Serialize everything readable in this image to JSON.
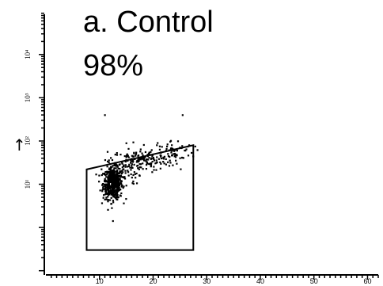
{
  "chart_data": {
    "type": "scatter",
    "title_lines": [
      "a. Control",
      "98%"
    ],
    "xlabel": "",
    "ylabel": "",
    "x_axis_marker": "",
    "y_axis_marker": "↑",
    "xlim": [
      0,
      62
    ],
    "x_tick_labels": [
      "10",
      "20",
      "30",
      "40",
      "50",
      "60"
    ],
    "x_tick_values": [
      10,
      20,
      30,
      40,
      50,
      60
    ],
    "ylim": [
      0.08,
      130000
    ],
    "y_scale": "log",
    "y_tick_labels": [
      "10¹",
      "10²",
      "10³",
      "10⁴"
    ],
    "y_tick_values": [
      10,
      100,
      1000,
      10000
    ],
    "gate": {
      "polygon": [
        [
          7.6,
          0.3
        ],
        [
          7.6,
          22
        ],
        [
          27.5,
          80
        ],
        [
          27.5,
          0.3
        ]
      ],
      "percent_label": "98%"
    },
    "series": [
      {
        "clusters": [
          {
            "x_mean": 12.5,
            "x_sd": 0.9,
            "y_log_mean": 1.02,
            "y_log_sd": 0.18,
            "n": 520
          },
          {
            "x_mean": 18,
            "x_sd": 3,
            "y_log_mean": 1.55,
            "y_log_sd": 0.12,
            "n": 140
          },
          {
            "x_mean": 23.5,
            "x_sd": 2,
            "y_log_mean": 1.78,
            "y_log_sd": 0.12,
            "n": 70
          },
          {
            "x_mean": 14,
            "x_sd": 2,
            "y_log_mean": 1.3,
            "y_log_sd": 0.15,
            "n": 60
          }
        ],
        "outliers": [
          [
            11,
            2.6
          ],
          [
            25.5,
            2.6
          ],
          [
            11.5,
            1.75
          ],
          [
            15,
            1.95
          ],
          [
            16.3,
            1.97
          ],
          [
            12.3,
            0.45
          ],
          [
            12.5,
            0.15
          ]
        ]
      }
    ]
  }
}
